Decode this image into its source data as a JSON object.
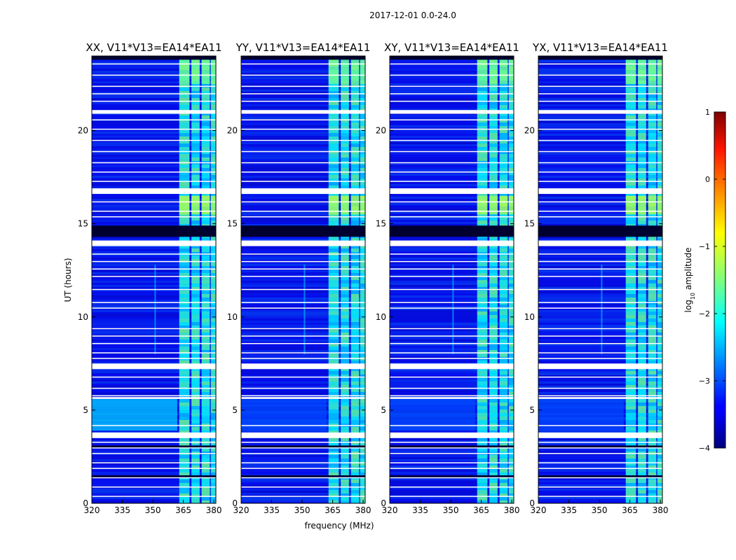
{
  "chart_data": {
    "type": "heatmap",
    "suptitle": "2017-12-01 0.0-24.0",
    "xlabel": "frequency (MHz)",
    "ylabel": "UT (hours)",
    "xlim": [
      320,
      381
    ],
    "ylim": [
      0,
      24
    ],
    "xticks": [
      320,
      335,
      350,
      365,
      380
    ],
    "yticks": [
      0,
      5,
      10,
      15,
      20
    ],
    "panels": [
      {
        "title": "XX, V11*V13=EA14*EA11",
        "pol": "XX"
      },
      {
        "title": "YY, V11*V13=EA14*EA11",
        "pol": "YY"
      },
      {
        "title": "XY, V11*V13=EA14*EA11",
        "pol": "XY"
      },
      {
        "title": "YX, V11*V13=EA14*EA11",
        "pol": "YX"
      }
    ],
    "colorbar": {
      "label_prefix": "log",
      "label_sub": "10",
      "label_suffix": " amplitude",
      "ticks": [
        1,
        0,
        -1,
        -2,
        -3,
        -4
      ],
      "tick_labels": [
        "1",
        "0",
        "−1",
        "−2",
        "−3",
        "−4"
      ],
      "range": [
        -4,
        1
      ],
      "colormap": "jet"
    },
    "rfi_bands_mhz": [
      [
        363,
        368
      ],
      [
        369,
        373
      ],
      [
        374,
        378
      ],
      [
        378.5,
        381
      ]
    ],
    "flagged_gaps_hours": [
      [
        20.9,
        21.1
      ],
      [
        16.6,
        16.9
      ],
      [
        13.8,
        14.1
      ],
      [
        7.2,
        7.5
      ],
      [
        5.6,
        5.7
      ],
      [
        3.5,
        3.8
      ]
    ]
  }
}
